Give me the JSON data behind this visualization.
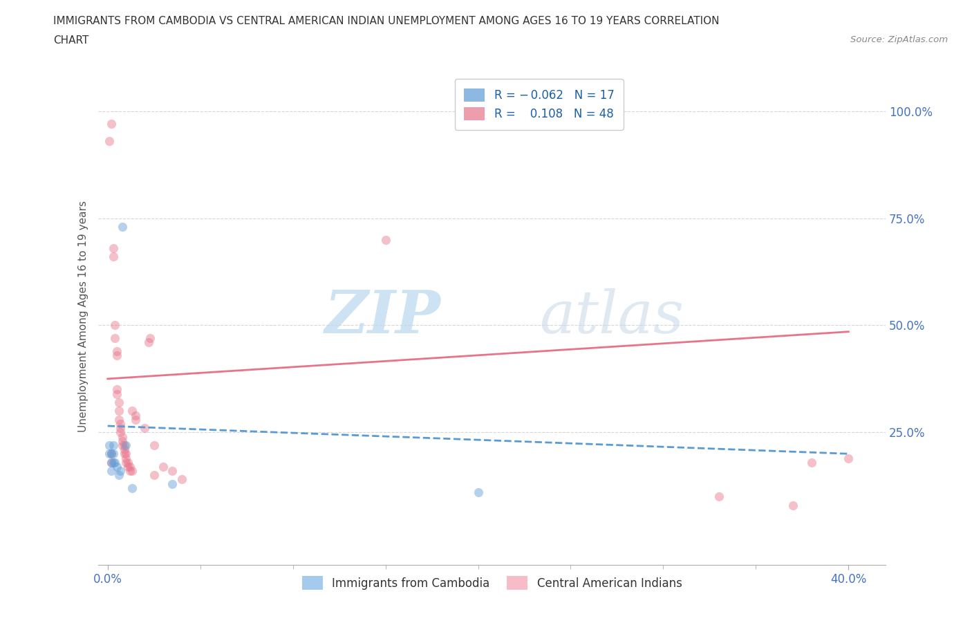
{
  "title_line1": "IMMIGRANTS FROM CAMBODIA VS CENTRAL AMERICAN INDIAN UNEMPLOYMENT AMONG AGES 16 TO 19 YEARS CORRELATION",
  "title_line2": "CHART",
  "source": "Source: ZipAtlas.com",
  "xlabel_ticks_shown": [
    "0.0%",
    "40.0%"
  ],
  "xlabel_tick_vals_shown": [
    0.0,
    0.4
  ],
  "ylabel": "Unemployment Among Ages 16 to 19 years",
  "ylabel_ticks": [
    "100.0%",
    "75.0%",
    "50.0%",
    "25.0%"
  ],
  "ylabel_tick_vals": [
    1.0,
    0.75,
    0.5,
    0.25
  ],
  "xlim": [
    -0.005,
    0.42
  ],
  "ylim": [
    -0.06,
    1.1
  ],
  "watermark_zip": "ZIP",
  "watermark_atlas": "atlas",
  "legend_r_items": [
    {
      "label_r": "R = ",
      "label_val": "-0.062",
      "label_n": "N = ",
      "label_nval": "17",
      "color": "#7EB6E8"
    },
    {
      "label_r": "R =  ",
      "label_val": "0.108",
      "label_n": "N = ",
      "label_nval": "48",
      "color": "#F4A0B0"
    }
  ],
  "bottom_legend": [
    {
      "label": "Immigrants from Cambodia",
      "color": "#7EB6E8"
    },
    {
      "label": "Central American Indians",
      "color": "#F4A0B0"
    }
  ],
  "cambodia_scatter": [
    [
      0.001,
      0.22
    ],
    [
      0.001,
      0.2
    ],
    [
      0.002,
      0.2
    ],
    [
      0.002,
      0.18
    ],
    [
      0.002,
      0.16
    ],
    [
      0.003,
      0.22
    ],
    [
      0.003,
      0.18
    ],
    [
      0.003,
      0.2
    ],
    [
      0.004,
      0.18
    ],
    [
      0.005,
      0.17
    ],
    [
      0.006,
      0.15
    ],
    [
      0.007,
      0.16
    ],
    [
      0.008,
      0.73
    ],
    [
      0.01,
      0.22
    ],
    [
      0.013,
      0.12
    ],
    [
      0.035,
      0.13
    ],
    [
      0.2,
      0.11
    ]
  ],
  "central_scatter": [
    [
      0.001,
      0.93
    ],
    [
      0.002,
      0.97
    ],
    [
      0.002,
      0.18
    ],
    [
      0.002,
      0.2
    ],
    [
      0.003,
      0.68
    ],
    [
      0.003,
      0.66
    ],
    [
      0.004,
      0.47
    ],
    [
      0.004,
      0.5
    ],
    [
      0.005,
      0.44
    ],
    [
      0.005,
      0.43
    ],
    [
      0.005,
      0.35
    ],
    [
      0.005,
      0.34
    ],
    [
      0.006,
      0.32
    ],
    [
      0.006,
      0.3
    ],
    [
      0.006,
      0.28
    ],
    [
      0.007,
      0.27
    ],
    [
      0.007,
      0.26
    ],
    [
      0.007,
      0.25
    ],
    [
      0.008,
      0.24
    ],
    [
      0.008,
      0.23
    ],
    [
      0.008,
      0.22
    ],
    [
      0.009,
      0.22
    ],
    [
      0.009,
      0.21
    ],
    [
      0.009,
      0.2
    ],
    [
      0.01,
      0.2
    ],
    [
      0.01,
      0.19
    ],
    [
      0.01,
      0.18
    ],
    [
      0.011,
      0.18
    ],
    [
      0.011,
      0.17
    ],
    [
      0.012,
      0.17
    ],
    [
      0.012,
      0.16
    ],
    [
      0.013,
      0.16
    ],
    [
      0.013,
      0.3
    ],
    [
      0.015,
      0.29
    ],
    [
      0.015,
      0.28
    ],
    [
      0.02,
      0.26
    ],
    [
      0.022,
      0.46
    ],
    [
      0.023,
      0.47
    ],
    [
      0.025,
      0.22
    ],
    [
      0.025,
      0.15
    ],
    [
      0.03,
      0.17
    ],
    [
      0.035,
      0.16
    ],
    [
      0.04,
      0.14
    ],
    [
      0.15,
      0.7
    ],
    [
      0.33,
      0.1
    ],
    [
      0.37,
      0.08
    ],
    [
      0.38,
      0.18
    ],
    [
      0.4,
      0.19
    ]
  ],
  "cambodia_line_x": [
    0.0,
    0.4
  ],
  "cambodia_line_y": [
    0.265,
    0.2
  ],
  "central_line_x": [
    0.0,
    0.4
  ],
  "central_line_y": [
    0.375,
    0.485
  ],
  "cambodia_color": "#5B9BD5",
  "central_color": "#E8748A",
  "scatter_alpha": 0.45,
  "scatter_size": 90,
  "grid_color": "#cccccc",
  "grid_linestyle": "--",
  "spine_color": "#aaaaaa",
  "tick_label_color": "#4472C4",
  "ylabel_color": "#555555",
  "title_color": "#333333",
  "source_color": "#888888"
}
